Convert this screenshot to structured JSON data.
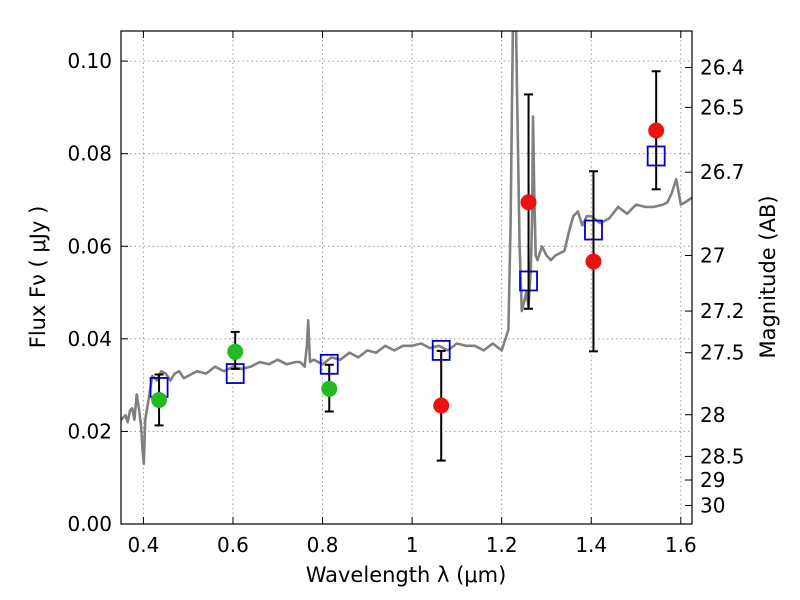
{
  "chart_data": {
    "type": "scatter",
    "xlabel": "Wavelength  λ (μm)",
    "ylabel": "Flux  Fν  ( μJy )",
    "y2label": "Magnitude (AB)",
    "xlim": [
      0.35,
      1.625
    ],
    "ylim": [
      0.0,
      0.1065
    ],
    "grid": true,
    "x_ticks": [
      {
        "value": 0.4,
        "label": "0.4"
      },
      {
        "value": 0.6,
        "label": "0.6"
      },
      {
        "value": 0.8,
        "label": "0.8"
      },
      {
        "value": 1.0,
        "label": "1"
      },
      {
        "value": 1.2,
        "label": "1.2"
      },
      {
        "value": 1.4,
        "label": "1.4"
      },
      {
        "value": 1.6,
        "label": "1.6"
      }
    ],
    "y_ticks": [
      {
        "value": 0.0,
        "label": "0.00"
      },
      {
        "value": 0.02,
        "label": "0.02"
      },
      {
        "value": 0.04,
        "label": "0.04"
      },
      {
        "value": 0.06,
        "label": "0.06"
      },
      {
        "value": 0.08,
        "label": "0.08"
      },
      {
        "value": 0.1,
        "label": "0.10"
      }
    ],
    "y2_ticks": [
      {
        "flux": 0.0986,
        "label": "26.4"
      },
      {
        "flux": 0.09,
        "label": "26.5"
      },
      {
        "flux": 0.076,
        "label": "26.7"
      },
      {
        "flux": 0.058,
        "label": "27"
      },
      {
        "flux": 0.046,
        "label": "27.2"
      },
      {
        "flux": 0.037,
        "label": "27.5"
      },
      {
        "flux": 0.0236,
        "label": "28"
      },
      {
        "flux": 0.0146,
        "label": "28.5"
      },
      {
        "flux": 0.0095,
        "label": "29"
      },
      {
        "flux": 0.004,
        "label": "30"
      }
    ],
    "colors": {
      "spectrum": "#808080",
      "model_box": "#0000cc",
      "green_point": "#22bb22",
      "red_point": "#ee1111",
      "errorbar": "#000000",
      "grid": "#9a9a9a"
    },
    "series": [
      {
        "kind": "spectrum_line",
        "x": [
          0.35,
          0.355,
          0.36,
          0.365,
          0.37,
          0.375,
          0.38,
          0.385,
          0.39,
          0.395,
          0.398,
          0.401,
          0.404,
          0.41,
          0.415,
          0.42,
          0.43,
          0.44,
          0.45,
          0.46,
          0.47,
          0.48,
          0.49,
          0.5,
          0.52,
          0.54,
          0.56,
          0.58,
          0.6,
          0.62,
          0.64,
          0.66,
          0.68,
          0.7,
          0.72,
          0.74,
          0.75,
          0.76,
          0.765,
          0.768,
          0.772,
          0.78,
          0.8,
          0.82,
          0.84,
          0.86,
          0.88,
          0.9,
          0.92,
          0.94,
          0.96,
          0.98,
          1.0,
          1.02,
          1.04,
          1.06,
          1.08,
          1.1,
          1.12,
          1.14,
          1.16,
          1.18,
          1.2,
          1.215,
          1.22,
          1.225,
          1.228,
          1.23,
          1.232,
          1.235,
          1.24,
          1.245,
          1.25,
          1.255,
          1.26,
          1.265,
          1.268,
          1.27,
          1.273,
          1.276,
          1.28,
          1.29,
          1.3,
          1.31,
          1.32,
          1.33,
          1.34,
          1.35,
          1.36,
          1.37,
          1.38,
          1.39,
          1.4,
          1.42,
          1.44,
          1.46,
          1.48,
          1.5,
          1.52,
          1.54,
          1.56,
          1.57,
          1.58,
          1.59,
          1.6,
          1.61,
          1.625
        ],
        "y": [
          0.0225,
          0.023,
          0.0235,
          0.022,
          0.0245,
          0.025,
          0.0225,
          0.028,
          0.025,
          0.021,
          0.016,
          0.013,
          0.0225,
          0.026,
          0.029,
          0.032,
          0.031,
          0.033,
          0.0325,
          0.031,
          0.0325,
          0.033,
          0.0315,
          0.032,
          0.033,
          0.0325,
          0.034,
          0.033,
          0.034,
          0.0335,
          0.034,
          0.035,
          0.0345,
          0.0355,
          0.0345,
          0.035,
          0.035,
          0.034,
          0.0385,
          0.044,
          0.035,
          0.0355,
          0.0345,
          0.036,
          0.0355,
          0.037,
          0.036,
          0.0375,
          0.037,
          0.0385,
          0.0375,
          0.0385,
          0.0385,
          0.039,
          0.038,
          0.0385,
          0.0375,
          0.039,
          0.0385,
          0.0385,
          0.0375,
          0.039,
          0.0375,
          0.042,
          0.065,
          0.108,
          0.108,
          0.108,
          0.108,
          0.09,
          0.06,
          0.046,
          0.048,
          0.05,
          0.047,
          0.055,
          0.066,
          0.088,
          0.07,
          0.058,
          0.057,
          0.06,
          0.058,
          0.057,
          0.058,
          0.0585,
          0.059,
          0.063,
          0.0665,
          0.0675,
          0.0645,
          0.0665,
          0.0665,
          0.065,
          0.066,
          0.0685,
          0.067,
          0.069,
          0.0685,
          0.0685,
          0.069,
          0.0695,
          0.0715,
          0.0745,
          0.069,
          0.0695,
          0.0705
        ]
      },
      {
        "kind": "model_boxes",
        "x": [
          0.435,
          0.605,
          0.815,
          1.065,
          1.26,
          1.405,
          1.545
        ],
        "y": [
          0.0295,
          0.0325,
          0.0345,
          0.0375,
          0.0525,
          0.0635,
          0.0795
        ]
      },
      {
        "kind": "points_green",
        "x": [
          0.435,
          0.605,
          0.815
        ],
        "y": [
          0.0268,
          0.0372,
          0.0292
        ],
        "yerr_low": [
          0.0213,
          0.0335,
          0.0243
        ],
        "yerr_high": [
          0.0323,
          0.0415,
          0.0344
        ]
      },
      {
        "kind": "points_red",
        "x": [
          1.065,
          1.26,
          1.405,
          1.545
        ],
        "y": [
          0.0256,
          0.0695,
          0.0567,
          0.085
        ],
        "yerr_low": [
          0.0137,
          0.0465,
          0.0373,
          0.0723
        ],
        "yerr_high": [
          0.0374,
          0.0928,
          0.0762,
          0.0978
        ]
      }
    ]
  }
}
